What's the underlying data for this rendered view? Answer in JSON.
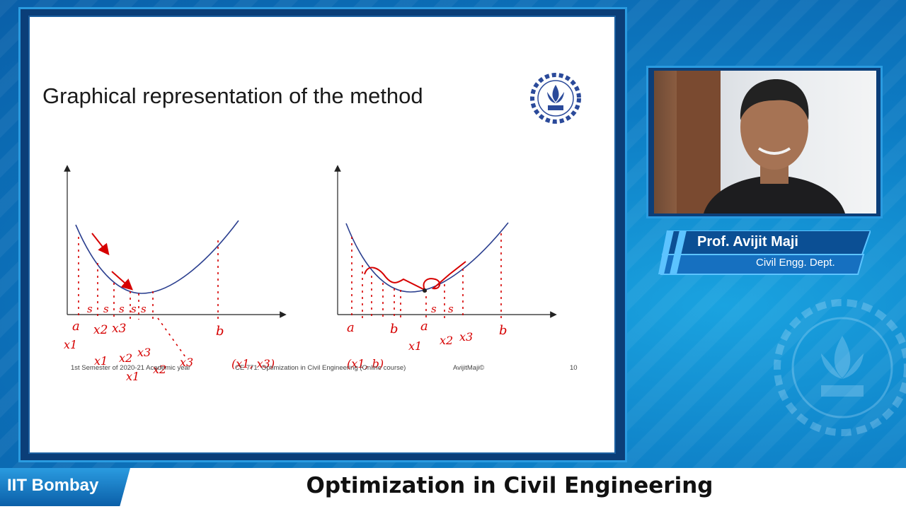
{
  "slide": {
    "title": "Graphical representation of the method",
    "footer_left": "1st Semester of 2020-21 Academic year",
    "footer_center": "CE 771: Optimization in Civil Engineering (Online course)",
    "footer_author": "AvijitMaji©",
    "page_number": "10",
    "left_graph": {
      "step_labels": [
        "s",
        "s",
        "s",
        "s",
        "s"
      ],
      "axis_labels": [
        "a",
        "x2",
        "x3",
        "b"
      ],
      "notes": [
        "x1",
        "x1",
        "x2",
        "x3",
        "x1",
        "x2",
        "x3",
        "(x1, x3)"
      ]
    },
    "right_graph": {
      "step_labels": [
        "s",
        "s"
      ],
      "axis_labels": [
        "a",
        "b",
        "a",
        "b"
      ],
      "notes": [
        "(x1, b)",
        "x1",
        "x2",
        "x3"
      ]
    }
  },
  "presenter": {
    "name": "Prof. Avijit Maji",
    "department": "Civil Engg. Dept."
  },
  "brand": {
    "label": "IIT Bombay"
  },
  "course": {
    "title": "Optimization in Civil Engineering"
  },
  "colors": {
    "accent": "#1a8fd8",
    "ink_red": "#d60000",
    "curve": "#2b3f8f"
  }
}
